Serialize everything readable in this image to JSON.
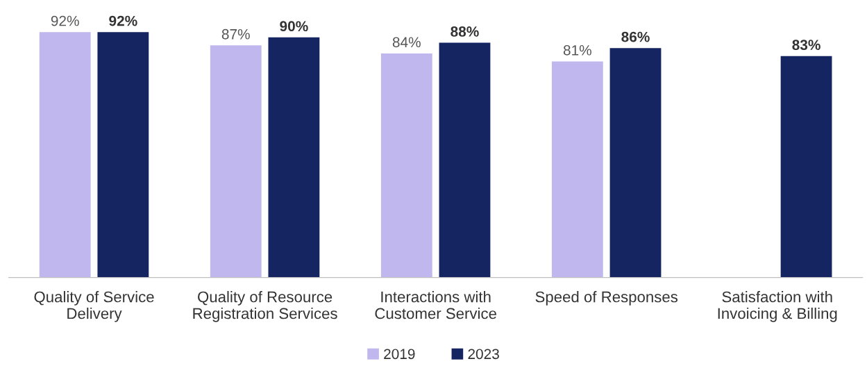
{
  "chart_data": {
    "type": "bar",
    "categories": [
      "Quality of Service\nDelivery",
      "Quality of Resource\nRegistration Services",
      "Interactions with\nCustomer Service",
      "Speed of Responses",
      "Satisfaction with\nInvoicing & Billing"
    ],
    "series": [
      {
        "name": "2019",
        "color": "#c1b7ef",
        "values": [
          92,
          87,
          84,
          81,
          null
        ],
        "value_labels": [
          "92%",
          "87%",
          "84%",
          "81%",
          null
        ]
      },
      {
        "name": "2023",
        "color": "#142562",
        "values": [
          92,
          90,
          88,
          86,
          83
        ],
        "value_labels": [
          "92%",
          "90%",
          "88%",
          "86%",
          "83%"
        ]
      }
    ],
    "tick_labels": "x",
    "grid": false,
    "legend": "bottom"
  }
}
